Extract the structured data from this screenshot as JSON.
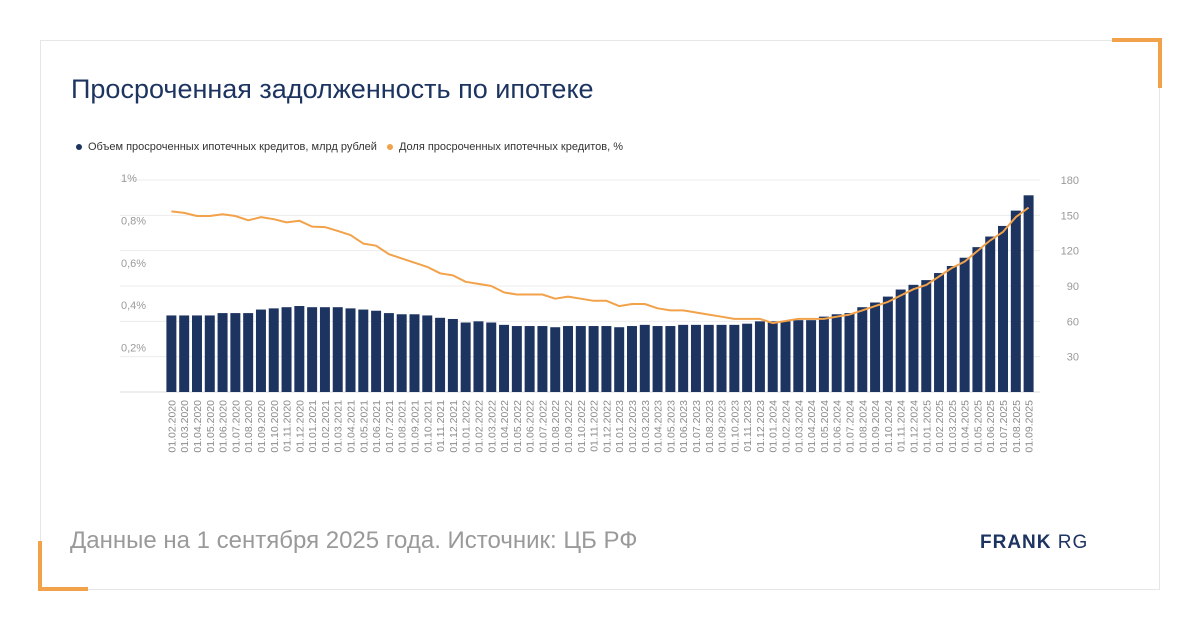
{
  "title": "Просроченная задолженность по ипотеке",
  "footer": "Данные на 1 сентября 2025 года. Источник: ЦБ РФ",
  "logo": {
    "bold": "FRANK",
    "light": "RG"
  },
  "colors": {
    "bar": "#1d3461",
    "line": "#f2a24a",
    "accent": "#f2a24a",
    "title": "#1d3461"
  },
  "chart_data": {
    "type": "bar",
    "legend_position": "top-left",
    "grid": true,
    "categories": [
      "01.02.2020",
      "01.03.2020",
      "01.04.2020",
      "01.05.2020",
      "01.06.2020",
      "01.07.2020",
      "01.08.2020",
      "01.09.2020",
      "01.10.2020",
      "01.11.2020",
      "01.12.2020",
      "01.01.2021",
      "01.02.2021",
      "01.03.2021",
      "01.04.2021",
      "01.05.2021",
      "01.06.2021",
      "01.07.2021",
      "01.08.2021",
      "01.09.2021",
      "01.10.2021",
      "01.11.2021",
      "01.12.2021",
      "01.01.2022",
      "01.02.2022",
      "01.03.2022",
      "01.04.2022",
      "01.05.2022",
      "01.06.2022",
      "01.07.2022",
      "01.08.2022",
      "01.09.2022",
      "01.10.2022",
      "01.11.2022",
      "01.12.2022",
      "01.01.2023",
      "01.02.2023",
      "01.03.2023",
      "01.04.2023",
      "01.05.2023",
      "01.06.2023",
      "01.07.2023",
      "01.08.2023",
      "01.09.2023",
      "01.10.2023",
      "01.11.2023",
      "01.12.2023",
      "01.01.2024",
      "01.02.2024",
      "01.03.2024",
      "01.04.2024",
      "01.05.2024",
      "01.06.2024",
      "01.07.2024",
      "01.08.2024",
      "01.09.2024",
      "01.10.2024",
      "01.11.2024",
      "01.12.2024",
      "01.01.2025",
      "01.02.2025",
      "01.03.2025",
      "01.04.2025",
      "01.05.2025",
      "01.06.2025",
      "01.07.2025",
      "01.08.2025",
      "01.09.2025"
    ],
    "left_axis": {
      "ticks": [
        "1%",
        "0,8%",
        "0,6%",
        "0,4%",
        "0,2%"
      ],
      "tick_values": [
        1.0,
        0.8,
        0.6,
        0.4,
        0.2
      ],
      "range": [
        0,
        1.0
      ]
    },
    "right_axis": {
      "ticks": [
        "180",
        "150",
        "120",
        "90",
        "60",
        "30"
      ],
      "tick_values": [
        180,
        150,
        120,
        90,
        60,
        30
      ],
      "range": [
        0,
        180
      ]
    },
    "series": [
      {
        "name": "Объем просроченных ипотечных кредитов, млрд рублей",
        "type": "bar",
        "axis": "right",
        "values": [
          65,
          65,
          65,
          65,
          67,
          67,
          67,
          70,
          71,
          72,
          73,
          72,
          72,
          72,
          71,
          70,
          69,
          67,
          66,
          66,
          65,
          63,
          62,
          59,
          60,
          59,
          57,
          56,
          56,
          56,
          55,
          56,
          56,
          56,
          56,
          55,
          56,
          57,
          56,
          56,
          57,
          57,
          57,
          57,
          57,
          58,
          60,
          60,
          60,
          61,
          61,
          64,
          66,
          67,
          72,
          76,
          81,
          87,
          91,
          95,
          101,
          107,
          114,
          123,
          132,
          141,
          154,
          167
        ]
      },
      {
        "name": "Доля просроченных ипотечных кредитов, %",
        "type": "line",
        "axis": "left",
        "values": [
          0.852,
          0.845,
          0.83,
          0.83,
          0.838,
          0.83,
          0.81,
          0.825,
          0.815,
          0.8,
          0.808,
          0.78,
          0.778,
          0.76,
          0.74,
          0.7,
          0.69,
          0.65,
          0.63,
          0.61,
          0.59,
          0.56,
          0.55,
          0.52,
          0.51,
          0.5,
          0.47,
          0.46,
          0.46,
          0.46,
          0.44,
          0.45,
          0.44,
          0.43,
          0.43,
          0.405,
          0.415,
          0.415,
          0.395,
          0.385,
          0.385,
          0.375,
          0.365,
          0.355,
          0.345,
          0.345,
          0.345,
          0.325,
          0.335,
          0.345,
          0.345,
          0.345,
          0.355,
          0.365,
          0.385,
          0.405,
          0.425,
          0.455,
          0.485,
          0.505,
          0.545,
          0.585,
          0.615,
          0.665,
          0.715,
          0.755,
          0.825,
          0.87
        ]
      }
    ]
  }
}
